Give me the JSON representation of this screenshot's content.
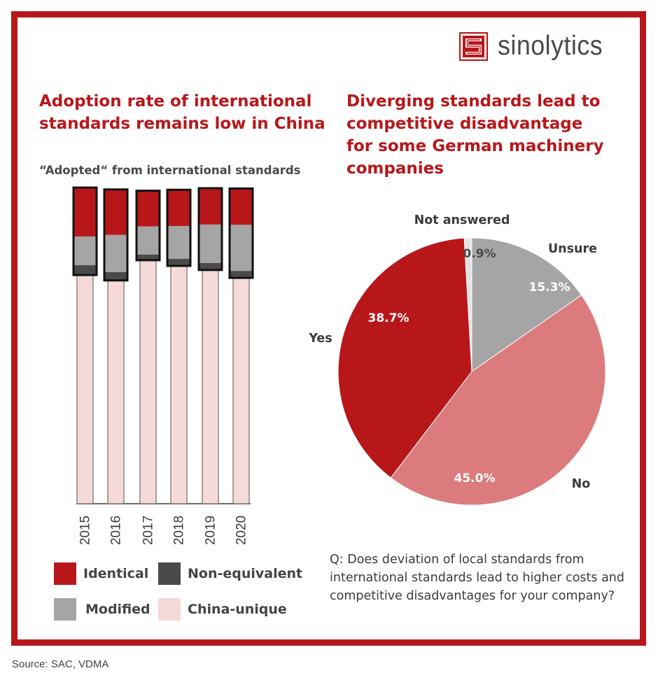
{
  "brand": {
    "name": "sinolytics",
    "accent_color": "#b8171a"
  },
  "left_panel": {
    "title_lines": [
      "Adoption rate of international",
      "standards remains low in China"
    ],
    "subtitle": "“Adopted“ from international standards"
  },
  "right_panel": {
    "title_lines": [
      "Diverging standards lead to",
      "competitive disadvantage",
      "for some German machinery",
      "companies"
    ],
    "question": "Q: Does deviation of local standards from international standards lead to higher costs and competitive disadvantages for your company?"
  },
  "source": "Source: SAC, VDMA",
  "chart_data": [
    {
      "type": "bar",
      "stacked": true,
      "title": "“Adopted“ from international standards",
      "xlabel": "",
      "ylabel": "",
      "ylim": [
        0,
        100
      ],
      "categories": [
        "2015",
        "2016",
        "2017",
        "2018",
        "2019",
        "2020"
      ],
      "series": [
        {
          "name": "China-unique",
          "color": "#f5dada",
          "values": [
            72.7,
            71.0,
            77.4,
            75.6,
            74.3,
            71.8
          ]
        },
        {
          "name": "Non-equivalent",
          "color": "#4a4a4a",
          "values": [
            2.9,
            2.4,
            1.6,
            2.0,
            2.0,
            2.0
          ]
        },
        {
          "name": "Modified",
          "color": "#a5a5a5",
          "values": [
            9.1,
            11.8,
            8.9,
            10.4,
            12.2,
            14.6
          ]
        },
        {
          "name": "Identical",
          "color": "#b8171a",
          "values": [
            15.5,
            14.4,
            11.3,
            11.5,
            11.5,
            11.5
          ]
        }
      ],
      "legend": [
        {
          "name": "Identical",
          "color": "#b8171a"
        },
        {
          "name": "Non-equivalent",
          "color": "#4a4a4a"
        },
        {
          "name": "Modified",
          "color": "#a5a5a5"
        },
        {
          "name": "China-unique",
          "color": "#f5dada"
        }
      ],
      "legend_position": "bottom",
      "grid": false
    },
    {
      "type": "pie",
      "title": "Diverging standards lead to competitive disadvantage for some German machinery companies",
      "slices": [
        {
          "label": "Unsure",
          "value": 15.3,
          "value_label": "15.3%",
          "color": "#a5a5a5"
        },
        {
          "label": "No",
          "value": 45.0,
          "value_label": "45.0%",
          "color": "#dc7b7d"
        },
        {
          "label": "Yes",
          "value": 38.7,
          "value_label": "38.7%",
          "color": "#b8171a"
        },
        {
          "label": "Not answered",
          "value": 0.9,
          "value_label": "0.9%",
          "color": "#e3e3e3"
        }
      ],
      "start_angle": "12 o'clock",
      "direction": "clockwise"
    }
  ]
}
